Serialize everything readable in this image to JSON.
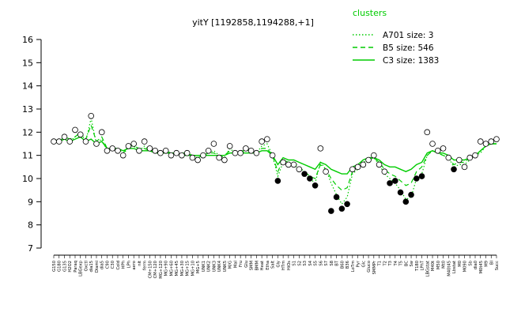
{
  "chart_data": {
    "type": "line",
    "title": "yitY [1192858,1194288,+1]",
    "ylim": [
      7,
      16
    ],
    "yticks": [
      7,
      8,
      9,
      10,
      11,
      12,
      13,
      14,
      15,
      16
    ],
    "legend": {
      "title": "clusters",
      "placement": "top-right",
      "entries": [
        {
          "label": "A701 size: 3",
          "style": "dotted"
        },
        {
          "label": "B5 size: 546",
          "style": "dashed"
        },
        {
          "label": "C3 size: 1383",
          "style": "solid"
        }
      ]
    },
    "xlabels": [
      "G150",
      "G180",
      "G135",
      "H2O2",
      "Paraq",
      "LBGexp",
      "Oxctl",
      "dia15",
      "Diami",
      "dia5",
      "C90",
      "C30",
      "Cold",
      "HPh",
      "LPh",
      "aero",
      "nit",
      "ferm",
      "CM+150",
      "CM+120",
      "MG+120",
      "MG+90",
      "MG+60",
      "MG+45",
      "MG+30",
      "MG+15",
      "MG+10",
      "MG+5",
      "UNK1",
      "UNK2",
      "UNK3",
      "UNK4",
      "UNK5",
      "M/G",
      "Mal",
      "Fru",
      "Glu",
      "SMM",
      "BMM",
      "Heat",
      "Etha",
      "Salt",
      "Gly",
      "HTm",
      "HiOs",
      "S1",
      "S2",
      "S3",
      "S4",
      "S5",
      "S6",
      "S7",
      "S8",
      "BT",
      "B60",
      "B36",
      "LoTm",
      "Pyr",
      "Glc",
      "Gluco",
      "SMMPr",
      "T1",
      "T2",
      "T3",
      "T4",
      "T5",
      "BC",
      "Sw",
      "T180",
      "LPhT",
      "LBGstat",
      "M40t",
      "M50",
      "Mt0",
      "M40t45",
      "Lbstat",
      "M0",
      "M090",
      "Sb",
      "dia0",
      "M0t45",
      "M9",
      "BI",
      "Succ"
    ],
    "series": [
      {
        "values": [
          11.6,
          11.5,
          11.8,
          11.6,
          11.8,
          12.0,
          11.6,
          12.6,
          11.5,
          11.7,
          11.2,
          11.3,
          11.2,
          11.0,
          11.4,
          11.4,
          11.2,
          11.4,
          11.2,
          11.2,
          11.1,
          11.2,
          11.0,
          11.1,
          11.0,
          11.1,
          11.0,
          10.9,
          11.0,
          11.1,
          11.2,
          11.0,
          10.9,
          11.3,
          11.1,
          11.1,
          11.2,
          11.2,
          11.1,
          11.4,
          11.5,
          11.0,
          10.1,
          10.7,
          10.6,
          10.6,
          10.4,
          10.2,
          10.0,
          9.8,
          10.7,
          10.4,
          9.8,
          9.3,
          8.9,
          9.2,
          10.2,
          10.4,
          10.6,
          10.8,
          10.9,
          10.6,
          10.2,
          10.0,
          9.8,
          9.5,
          9.1,
          9.2,
          10.0,
          10.2,
          11.0,
          11.2,
          11.1,
          11.0,
          10.9,
          10.5,
          10.6,
          10.6,
          10.8,
          11.0,
          11.1,
          11.4,
          11.5,
          11.5
        ]
      },
      {
        "values": [
          11.7,
          11.6,
          11.8,
          11.7,
          11.8,
          12.0,
          11.7,
          12.3,
          11.6,
          11.8,
          11.3,
          11.3,
          11.3,
          11.1,
          11.4,
          11.4,
          11.3,
          11.3,
          11.2,
          11.2,
          11.1,
          11.2,
          11.1,
          11.1,
          11.1,
          11.1,
          11.0,
          10.9,
          11.0,
          11.1,
          11.1,
          11.0,
          11.0,
          11.2,
          11.1,
          11.2,
          11.2,
          11.2,
          11.1,
          11.3,
          11.3,
          11.0,
          10.3,
          10.8,
          10.7,
          10.7,
          10.5,
          10.3,
          10.1,
          10.0,
          10.6,
          10.4,
          10.0,
          9.7,
          9.5,
          9.6,
          10.3,
          10.5,
          10.7,
          10.8,
          10.9,
          10.7,
          10.4,
          10.2,
          10.1,
          9.9,
          9.7,
          9.8,
          10.3,
          10.5,
          11.0,
          11.2,
          11.1,
          11.0,
          10.9,
          10.6,
          10.7,
          10.7,
          10.9,
          11.0,
          11.2,
          11.4,
          11.5,
          11.5
        ]
      },
      {
        "values": [
          11.6,
          11.6,
          11.7,
          11.6,
          11.7,
          11.8,
          11.6,
          11.7,
          11.5,
          11.6,
          11.3,
          11.3,
          11.3,
          11.2,
          11.3,
          11.3,
          11.2,
          11.2,
          11.2,
          11.1,
          11.1,
          11.1,
          11.1,
          11.1,
          11.0,
          11.0,
          11.0,
          11.0,
          11.0,
          11.0,
          11.0,
          11.0,
          11.0,
          11.1,
          11.1,
          11.1,
          11.1,
          11.1,
          11.1,
          11.2,
          11.2,
          11.0,
          10.6,
          10.9,
          10.8,
          10.8,
          10.7,
          10.6,
          10.5,
          10.4,
          10.7,
          10.6,
          10.4,
          10.3,
          10.2,
          10.2,
          10.5,
          10.6,
          10.8,
          10.9,
          10.9,
          10.8,
          10.6,
          10.5,
          10.5,
          10.4,
          10.3,
          10.4,
          10.6,
          10.7,
          11.1,
          11.2,
          11.1,
          11.1,
          11.0,
          10.8,
          10.8,
          10.8,
          10.9,
          11.0,
          11.2,
          11.4,
          11.5,
          11.5
        ]
      }
    ],
    "points": [
      {
        "label": "G150",
        "value": 11.6
      },
      {
        "label": "G180",
        "value": 11.6
      },
      {
        "label": "G135",
        "value": 11.8
      },
      {
        "label": "H2O2",
        "value": 11.6
      },
      {
        "label": "Paraq",
        "value": 12.1
      },
      {
        "label": "LBGexp",
        "value": 11.9
      },
      {
        "label": "Oxctl",
        "value": 11.6
      },
      {
        "label": "dia15",
        "value": 12.7
      },
      {
        "label": "Diami",
        "value": 11.5
      },
      {
        "label": "dia5",
        "value": 12.0
      },
      {
        "label": "C90",
        "value": 11.2
      },
      {
        "label": "C30",
        "value": 11.3
      },
      {
        "label": "Cold",
        "value": 11.2
      },
      {
        "label": "HPh",
        "value": 11.0
      },
      {
        "label": "LPh",
        "value": 11.4
      },
      {
        "label": "aero",
        "value": 11.5
      },
      {
        "label": "nit",
        "value": 11.2
      },
      {
        "label": "ferm",
        "value": 11.6
      },
      {
        "label": "CM+150",
        "value": 11.3
      },
      {
        "label": "CM+120",
        "value": 11.2
      },
      {
        "label": "MG+120",
        "value": 11.1
      },
      {
        "label": "MG+90",
        "value": 11.2
      },
      {
        "label": "MG+60",
        "value": 11.0
      },
      {
        "label": "MG+45",
        "value": 11.1
      },
      {
        "label": "MG+30",
        "value": 11.0
      },
      {
        "label": "MG+15",
        "value": 11.1
      },
      {
        "label": "MG+10",
        "value": 10.9
      },
      {
        "label": "MG+5",
        "value": 10.8
      },
      {
        "label": "UNK1",
        "value": 11.0
      },
      {
        "label": "UNK2",
        "value": 11.2
      },
      {
        "label": "UNK3",
        "value": 11.5
      },
      {
        "label": "UNK4",
        "value": 10.9
      },
      {
        "label": "UNK5",
        "value": 10.8
      },
      {
        "label": "M/G",
        "value": 11.4
      },
      {
        "label": "Mal",
        "value": 11.1
      },
      {
        "label": "Fru",
        "value": 11.1
      },
      {
        "label": "Glu",
        "value": 11.3
      },
      {
        "label": "SMM",
        "value": 11.2
      },
      {
        "label": "BMM",
        "value": 11.1
      },
      {
        "label": "Heat",
        "value": 11.6
      },
      {
        "label": "Etha",
        "value": 11.7
      },
      {
        "label": "Salt",
        "value": 11.0
      },
      {
        "label": "Gly",
        "value": 9.9
      },
      {
        "label": "HTm",
        "value": 10.7
      },
      {
        "label": "HiOs",
        "value": 10.6
      },
      {
        "label": "S1",
        "value": 10.6
      },
      {
        "label": "S2",
        "value": 10.4
      },
      {
        "label": "S3",
        "value": 10.2
      },
      {
        "label": "S4",
        "value": 10.0
      },
      {
        "label": "S5",
        "value": 9.7
      },
      {
        "label": "S6",
        "value": 11.3
      },
      {
        "label": "S7",
        "value": 10.3
      },
      {
        "label": "S8",
        "value": 8.6
      },
      {
        "label": "BT",
        "value": 9.2
      },
      {
        "label": "B60",
        "value": 8.7
      },
      {
        "label": "B36",
        "value": 8.9
      },
      {
        "label": "LoTm",
        "value": 10.4
      },
      {
        "label": "Pyr",
        "value": 10.5
      },
      {
        "label": "Glc",
        "value": 10.6
      },
      {
        "label": "Gluco",
        "value": 10.8
      },
      {
        "label": "SMMPr",
        "value": 11.0
      },
      {
        "label": "T1",
        "value": 10.6
      },
      {
        "label": "T2",
        "value": 10.3
      },
      {
        "label": "T3",
        "value": 9.8
      },
      {
        "label": "T4",
        "value": 9.9
      },
      {
        "label": "T5",
        "value": 9.4
      },
      {
        "label": "BC",
        "value": 9.0
      },
      {
        "label": "Sw",
        "value": 9.3
      },
      {
        "label": "T180",
        "value": 10.0
      },
      {
        "label": "LPhT",
        "value": 10.1
      },
      {
        "label": "LBGstat",
        "value": 12.0
      },
      {
        "label": "M40t",
        "value": 11.5
      },
      {
        "label": "M50",
        "value": 11.2
      },
      {
        "label": "Mt0",
        "value": 11.3
      },
      {
        "label": "M40t45",
        "value": 10.9
      },
      {
        "label": "Lbstat",
        "value": 10.4
      },
      {
        "label": "M0",
        "value": 10.8
      },
      {
        "label": "M090",
        "value": 10.5
      },
      {
        "label": "Sb",
        "value": 10.9
      },
      {
        "label": "dia0",
        "value": 11.0
      },
      {
        "label": "M0t45",
        "value": 11.6
      },
      {
        "label": "M9",
        "value": 11.5
      },
      {
        "label": "BI",
        "value": 11.6
      },
      {
        "label": "Succ",
        "value": 11.7
      }
    ],
    "line_color": "#00cc00",
    "point_fill": "#ffffff",
    "point_fill_dark": "#000000",
    "axis_color": "#000000"
  }
}
